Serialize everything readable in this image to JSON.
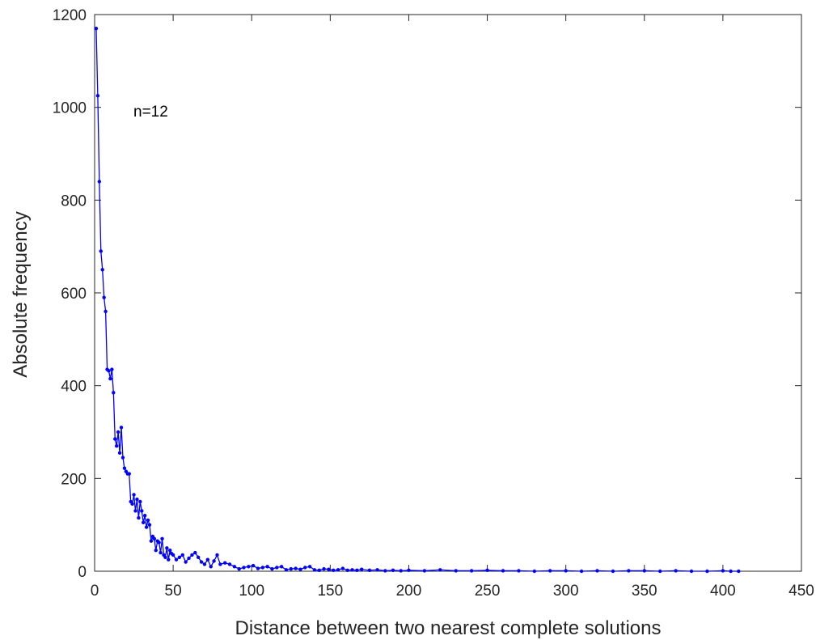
{
  "chart_data": {
    "type": "line",
    "title": "",
    "xlabel": "Distance between two nearest complete solutions",
    "ylabel": "Absolute frequency",
    "xlim": [
      0,
      450
    ],
    "ylim": [
      0,
      1200
    ],
    "xticks": [
      "0",
      "50",
      "100",
      "150",
      "200",
      "250",
      "300",
      "350",
      "400",
      "450"
    ],
    "yticks": [
      "0",
      "200",
      "400",
      "600",
      "800",
      "1000",
      "1200"
    ],
    "grid": false,
    "legend": "none",
    "annotation": "n=12",
    "series": [
      {
        "color": "#0000ff",
        "marker": "dot",
        "x": [
          1,
          2,
          3,
          4,
          5,
          6,
          7,
          8,
          9,
          10,
          11,
          12,
          13,
          14,
          15,
          16,
          17,
          18,
          19,
          20,
          21,
          22,
          23,
          24,
          25,
          26,
          27,
          28,
          29,
          30,
          31,
          32,
          33,
          34,
          35,
          36,
          37,
          38,
          39,
          40,
          41,
          42,
          43,
          44,
          45,
          46,
          47,
          48,
          49,
          50,
          52,
          54,
          56,
          58,
          60,
          62,
          64,
          66,
          68,
          70,
          72,
          74,
          76,
          78,
          80,
          83,
          86,
          89,
          92,
          95,
          98,
          101,
          104,
          107,
          110,
          113,
          116,
          119,
          122,
          125,
          128,
          131,
          134,
          137,
          140,
          143,
          146,
          149,
          152,
          155,
          158,
          161,
          164,
          167,
          170,
          175,
          180,
          185,
          190,
          195,
          200,
          210,
          220,
          230,
          240,
          250,
          260,
          270,
          280,
          290,
          300,
          310,
          320,
          330,
          340,
          350,
          360,
          370,
          380,
          390,
          400,
          405,
          410
        ],
        "y": [
          1170,
          1025,
          840,
          690,
          650,
          590,
          560,
          435,
          432,
          415,
          435,
          385,
          285,
          270,
          300,
          255,
          310,
          245,
          222,
          215,
          210,
          210,
          150,
          145,
          165,
          130,
          155,
          115,
          150,
          130,
          105,
          120,
          95,
          110,
          100,
          65,
          75,
          70,
          45,
          65,
          62,
          40,
          70,
          35,
          30,
          50,
          25,
          45,
          38,
          35,
          25,
          30,
          35,
          20,
          28,
          35,
          40,
          30,
          20,
          15,
          25,
          10,
          22,
          35,
          15,
          18,
          15,
          10,
          5,
          8,
          10,
          12,
          6,
          8,
          10,
          5,
          8,
          10,
          3,
          5,
          6,
          4,
          8,
          10,
          3,
          2,
          5,
          4,
          2,
          3,
          6,
          2,
          3,
          2,
          4,
          2,
          3,
          1,
          2,
          1,
          2,
          1,
          3,
          1,
          1,
          2,
          1,
          1,
          0,
          1,
          1,
          0,
          1,
          0,
          1,
          1,
          0,
          1,
          0,
          0,
          1,
          0,
          0
        ]
      }
    ]
  }
}
